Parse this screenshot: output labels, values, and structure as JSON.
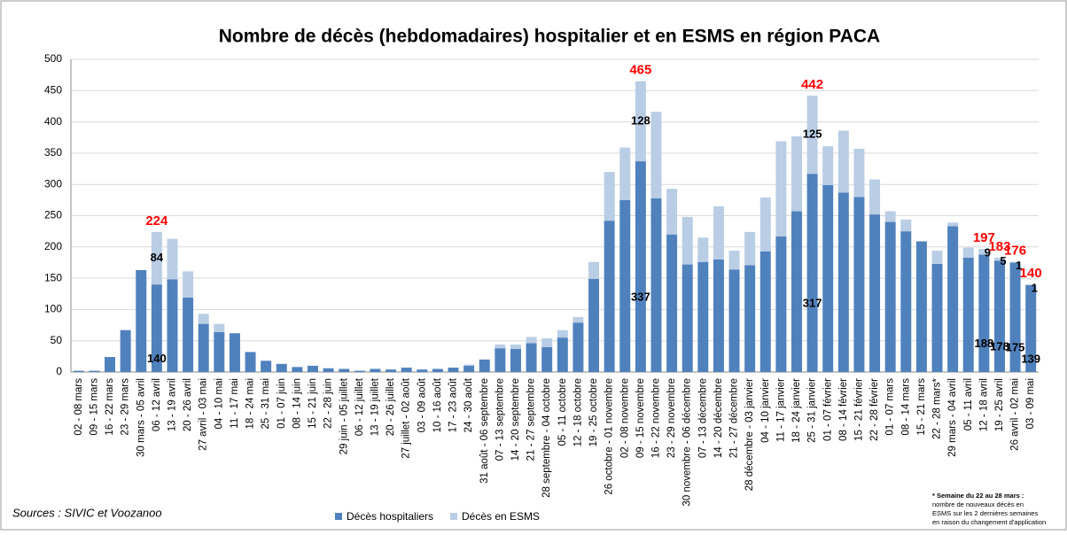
{
  "chart_data": {
    "type": "stacked_bar",
    "title": "Nombre de décès (hebdomadaires) hospitalier et en ESMS en région PACA",
    "source": "Sources : SIVIC et Voozanoo",
    "footnote": [
      "* Semaine du 22 au 28 mars :",
      "nombre de nouveaux décès en",
      "ESMS sur les 2 dernières semaines",
      "en raison du changement d'application"
    ],
    "categories": [
      "02 - 08 mars",
      "09 - 15 mars",
      "16 - 22 mars",
      "23 - 29 mars",
      "30 mars - 05 avril",
      "06 - 12 avril",
      "13 - 19 avril",
      "20 - 26 avril",
      "27 avril - 03 mai",
      "04 - 10 mai",
      "11 - 17 mai",
      "18 - 24 mai",
      "25 - 31 mai",
      "01 - 07 juin",
      "08 - 14 juin",
      "15 - 21 juin",
      "22 - 28 juin",
      "29 juin - 05 juillet",
      "06 - 12 juillet",
      "13 - 19 juillet",
      "20 - 26 juillet",
      "27 juillet - 02 août",
      "03 - 09 août",
      "10 - 16 août",
      "17 - 23 août",
      "24 - 30 août",
      "31 août - 06 septembre",
      "07 - 13 septembre",
      "14 - 20 septembre",
      "21 - 27 septembre",
      "28 septembre - 04 octobre",
      "05 - 11 octobre",
      "12 - 18 octobre",
      "19 - 25 octobre",
      "26 octobre - 01 novembre",
      "02 - 08 novembre",
      "09 - 15 novembre",
      "16 - 22 novembre",
      "23 - 29 novembre",
      "30 novembre - 06 décembre",
      "07 - 13 décembre",
      "14 - 20 décembre",
      "21 - 27 décembre",
      "28 décembre - 03 janvier",
      "04 - 10 janvier",
      "11 - 17 janvier",
      "18 - 24 janvier",
      "25 - 31 janvier",
      "01 - 07 février",
      "08 - 14 février",
      "15 - 21 février",
      "22 - 28 février",
      "01 - 07 mars",
      "08 - 14 mars",
      "15 - 21 mars",
      "22 - 28 mars*",
      "29 mars - 04 avril",
      "05 - 11 avril",
      "12 - 18 avril",
      "19 - 25 avril",
      "26 avril - 02 mai",
      "03 - 09 mai"
    ],
    "series": [
      {
        "name": "Décès hospitaliers",
        "color": "#4f81bd",
        "values": [
          2,
          2,
          24,
          67,
          163,
          140,
          148,
          119,
          77,
          64,
          62,
          32,
          18,
          13,
          8,
          10,
          6,
          5,
          2,
          5,
          4,
          7,
          4,
          5,
          7,
          10,
          20,
          38,
          37,
          46,
          40,
          55,
          79,
          149,
          242,
          275,
          337,
          278,
          220,
          172,
          176,
          180,
          164,
          171,
          193,
          217,
          257,
          317,
          299,
          287,
          280,
          252,
          240,
          225,
          209,
          173,
          233,
          183,
          188,
          178,
          175,
          139
        ],
        "data_labels": [
          null,
          null,
          null,
          null,
          null,
          140,
          null,
          null,
          null,
          null,
          null,
          null,
          null,
          null,
          null,
          null,
          null,
          null,
          null,
          null,
          null,
          null,
          null,
          null,
          null,
          null,
          null,
          null,
          null,
          null,
          null,
          null,
          null,
          null,
          null,
          null,
          337,
          null,
          null,
          null,
          null,
          null,
          null,
          null,
          null,
          null,
          null,
          317,
          null,
          null,
          null,
          null,
          null,
          null,
          null,
          null,
          null,
          null,
          188,
          178,
          175,
          139
        ]
      },
      {
        "name": "Décès en ESMS",
        "color": "#b9cde5",
        "values": [
          0,
          0,
          0,
          0,
          0,
          84,
          65,
          42,
          16,
          13,
          0,
          0,
          0,
          0,
          0,
          0,
          0,
          0,
          0,
          0,
          0,
          0,
          0,
          0,
          0,
          2,
          0,
          6,
          7,
          10,
          14,
          12,
          9,
          27,
          78,
          84,
          128,
          138,
          73,
          76,
          39,
          85,
          30,
          53,
          86,
          152,
          120,
          125,
          62,
          99,
          77,
          56,
          17,
          19,
          0,
          21,
          6,
          16,
          9,
          5,
          1,
          1
        ],
        "data_labels": [
          null,
          null,
          null,
          null,
          null,
          84,
          null,
          null,
          null,
          null,
          null,
          null,
          null,
          null,
          null,
          null,
          null,
          null,
          null,
          null,
          null,
          null,
          null,
          null,
          null,
          null,
          null,
          null,
          null,
          null,
          null,
          null,
          null,
          null,
          null,
          null,
          128,
          null,
          null,
          null,
          null,
          null,
          null,
          null,
          null,
          null,
          null,
          125,
          null,
          null,
          null,
          null,
          null,
          null,
          null,
          null,
          null,
          null,
          9,
          5,
          1,
          1
        ]
      }
    ],
    "total_labels": [
      null,
      null,
      null,
      null,
      null,
      224,
      null,
      null,
      null,
      null,
      null,
      null,
      null,
      null,
      null,
      null,
      null,
      null,
      null,
      null,
      null,
      null,
      null,
      null,
      null,
      null,
      null,
      null,
      null,
      null,
      null,
      null,
      null,
      null,
      null,
      null,
      465,
      null,
      null,
      null,
      null,
      null,
      null,
      null,
      null,
      null,
      null,
      442,
      null,
      null,
      null,
      null,
      null,
      null,
      null,
      null,
      null,
      null,
      197,
      183,
      176,
      140
    ],
    "total_label_color": "#ff0000",
    "ylim": [
      0,
      500
    ],
    "yticks": [
      0,
      50,
      100,
      150,
      200,
      250,
      300,
      350,
      400,
      450,
      500
    ],
    "grid": true
  }
}
